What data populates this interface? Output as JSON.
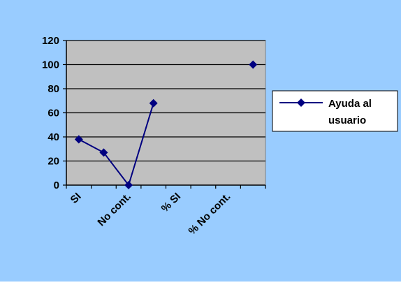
{
  "colors": {
    "chart_area_bg": "#99ccff",
    "plot_area_bg": "#c0c0c0",
    "series_color": "#000080",
    "legend_bg": "#ffffff"
  },
  "chart_data": {
    "type": "line",
    "title": "",
    "xlabel": "",
    "ylabel": "",
    "ylim": [
      0,
      120
    ],
    "yticks": [
      "0",
      "20",
      "40",
      "60",
      "80",
      "100",
      "120"
    ],
    "categories": [
      "SI",
      "",
      "No cont.",
      "",
      "% SI",
      "",
      "% No cont.",
      ""
    ],
    "series": [
      {
        "name": "Ayuda al usuario",
        "marker": "diamond",
        "values": [
          38,
          27,
          0,
          68,
          null,
          null,
          null,
          100
        ]
      }
    ],
    "grid": "horizontal",
    "legend": {
      "position": "right",
      "lines": [
        "Ayuda al",
        "usuario"
      ]
    }
  }
}
